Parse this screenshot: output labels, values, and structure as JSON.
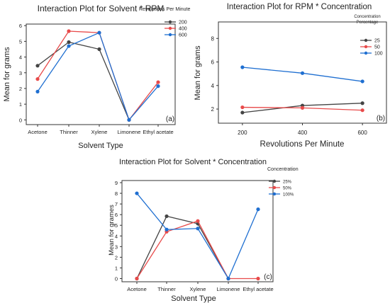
{
  "chart_data": [
    {
      "type": "line",
      "panel_label": "(a)",
      "title": "Interaction Plot for Solvent * RPM",
      "xlabel": "Solvent Type",
      "ylabel": "Mean for grams",
      "categories": [
        "Acetone",
        "Thinner",
        "Xylene",
        "Limonene",
        "Ethyl acetate"
      ],
      "yticks": [
        "0",
        "1",
        "2",
        "3",
        "4",
        "5",
        "6"
      ],
      "ylim": [
        -0.3,
        6.1
      ],
      "legend": {
        "title": "Revolutions Per Minute",
        "placement": "top-right"
      },
      "series": [
        {
          "name": "200",
          "color": "#444444",
          "values": [
            3.45,
            4.95,
            4.5,
            0.0,
            null
          ]
        },
        {
          "name": "400",
          "color": "#e84a4a",
          "values": [
            2.6,
            5.65,
            5.55,
            0.0,
            2.4
          ]
        },
        {
          "name": "600",
          "color": "#1f6fd1",
          "values": [
            1.8,
            4.7,
            5.55,
            0.0,
            2.15
          ]
        }
      ],
      "grid": false
    },
    {
      "type": "line",
      "panel_label": "(b)",
      "title": "Interaction Plot for RPM * Concentration",
      "xlabel": "Revolutions Per Minute",
      "ylabel": "Mean for grams",
      "x": [
        200,
        400,
        600
      ],
      "xticks": [
        "200",
        "400",
        "600"
      ],
      "yticks": [
        "2",
        "4",
        "6",
        "8"
      ],
      "ylim": [
        0.8,
        9.4
      ],
      "legend": {
        "title_lines": [
          "Concentration",
          "Percentage"
        ],
        "placement": "top-right"
      },
      "series": [
        {
          "name": "25",
          "color": "#444444",
          "values": [
            1.7,
            2.3,
            2.5
          ]
        },
        {
          "name": "50",
          "color": "#e84a4a",
          "values": [
            2.15,
            2.1,
            1.9
          ]
        },
        {
          "name": "100",
          "color": "#1f6fd1",
          "values": [
            5.55,
            5.05,
            4.35
          ]
        }
      ],
      "grid": false
    },
    {
      "type": "line",
      "panel_label": "(c)",
      "title": "Interaction Plot for Solvent * Concentration",
      "xlabel": "Solvent Type",
      "ylabel": "Mean for grames",
      "categories": [
        "Acetone",
        "Thinner",
        "Xylene",
        "Limonene",
        "Ethyl acetate"
      ],
      "yticks": [
        "0",
        "1",
        "2",
        "3",
        "4",
        "5",
        "6",
        "7",
        "8",
        "9"
      ],
      "ylim": [
        -0.3,
        9.2
      ],
      "legend": {
        "title": "Concentration",
        "placement": "top-right"
      },
      "series": [
        {
          "name": "25%",
          "color": "#444444",
          "values": [
            0.0,
            5.85,
            5.15,
            0.0,
            null
          ]
        },
        {
          "name": "50%",
          "color": "#e84a4a",
          "values": [
            0.0,
            4.4,
            5.4,
            0.0,
            0.0
          ]
        },
        {
          "name": "100%",
          "color": "#1f6fd1",
          "values": [
            8.0,
            4.6,
            4.7,
            0.0,
            6.5
          ]
        }
      ],
      "grid": false
    }
  ]
}
